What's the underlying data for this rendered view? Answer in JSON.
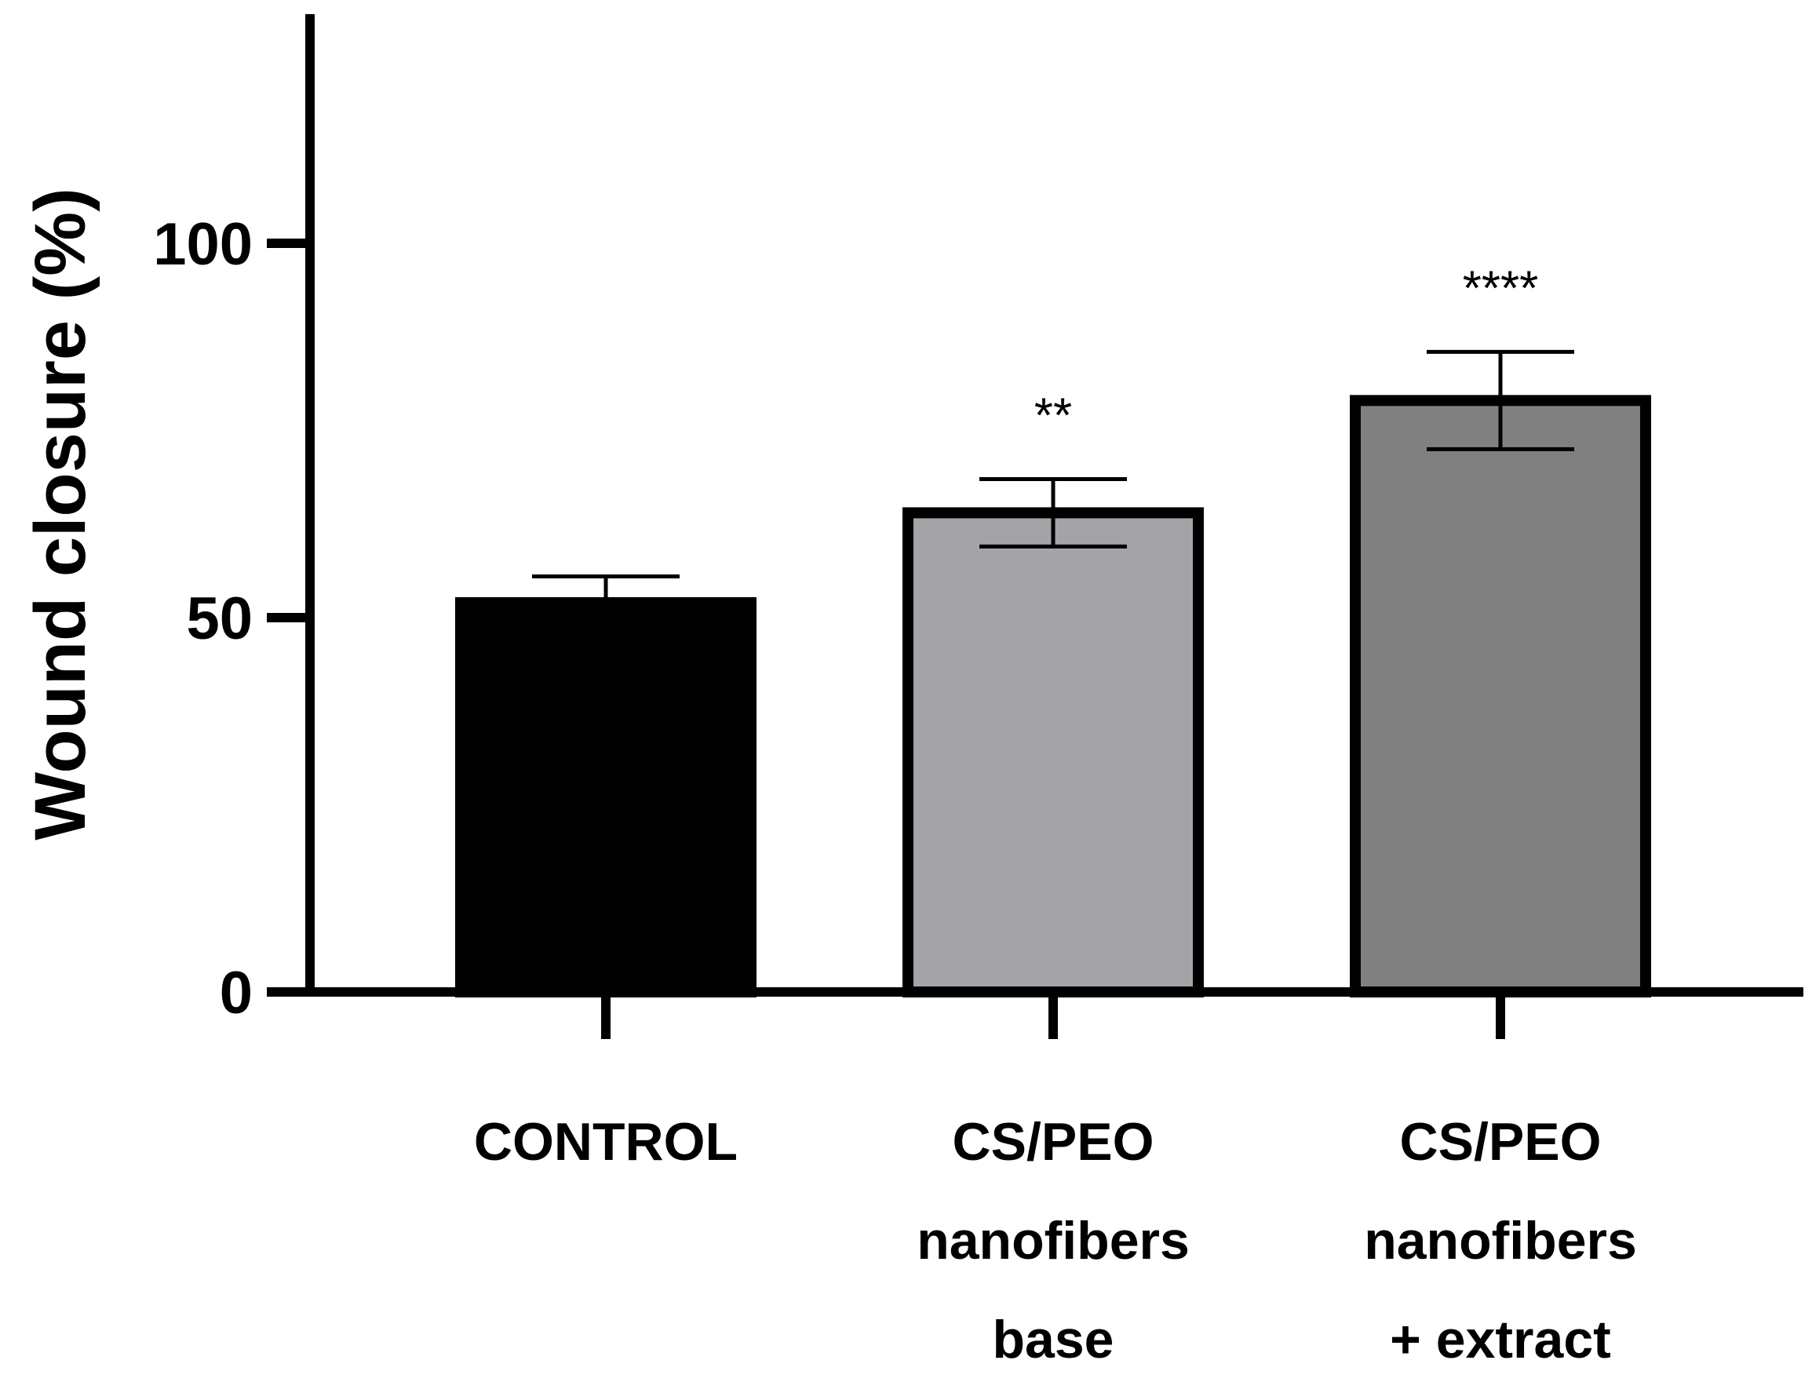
{
  "chart_data": {
    "type": "bar",
    "title": "",
    "xlabel": "",
    "ylabel": "Wound closure (%)",
    "ylim": [
      0,
      130
    ],
    "yticks": [
      0,
      50,
      100
    ],
    "grid": false,
    "legend": "none",
    "categories": [
      [
        "CONTROL"
      ],
      [
        "CS/PEO",
        "nanofibers",
        "base"
      ],
      [
        "CS/PEO",
        "nanofibers",
        "+ extract"
      ]
    ],
    "values": [
      52,
      64,
      79
    ],
    "errors": [
      3.5,
      4.5,
      6.5
    ],
    "significance": [
      "",
      "**",
      "****"
    ],
    "colors": [
      "#000000",
      "#a4a4a8",
      "#808080"
    ]
  }
}
